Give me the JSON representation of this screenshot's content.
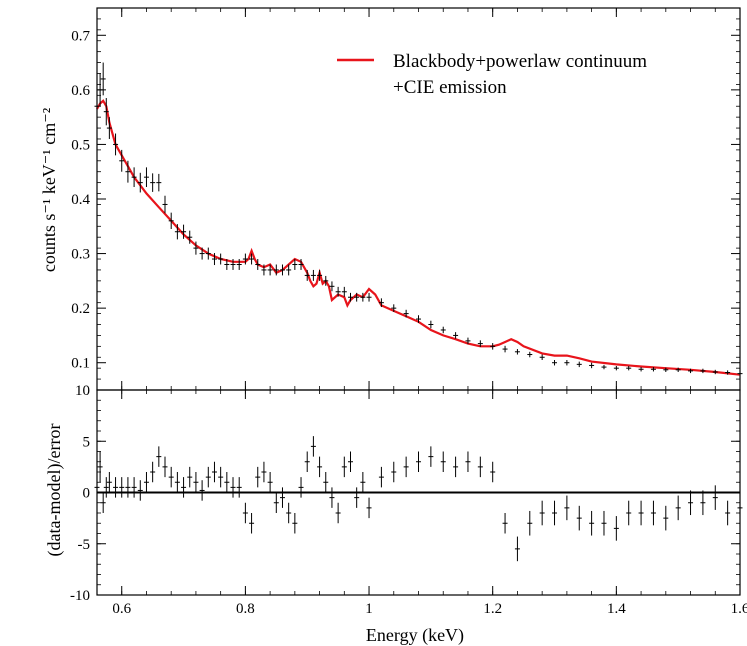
{
  "chart_data": [
    {
      "panel": "top",
      "type": "line",
      "xlabel": "",
      "ylabel": "counts s⁻¹ keV⁻¹ cm⁻²",
      "xlim": [
        0.56,
        1.6
      ],
      "ylim": [
        0.05,
        0.75
      ],
      "yticks": [
        0.1,
        0.2,
        0.3,
        0.4,
        0.5,
        0.6,
        0.7
      ],
      "xticks": [
        0.6,
        0.8,
        1,
        1.2,
        1.4,
        1.6
      ],
      "legend_position": "top-right",
      "series": [
        {
          "name": "Blackbody+powerlaw continuum +CIE emission",
          "legend_lines": [
            "Blackbody+powerlaw continuum",
            "+CIE emission"
          ],
          "color": "#e8141b",
          "kind": "line",
          "x": [
            0.56,
            0.565,
            0.57,
            0.575,
            0.58,
            0.59,
            0.6,
            0.62,
            0.64,
            0.66,
            0.68,
            0.7,
            0.72,
            0.74,
            0.76,
            0.78,
            0.8,
            0.805,
            0.81,
            0.815,
            0.82,
            0.83,
            0.84,
            0.85,
            0.86,
            0.87,
            0.88,
            0.89,
            0.9,
            0.905,
            0.91,
            0.915,
            0.92,
            0.925,
            0.93,
            0.935,
            0.94,
            0.95,
            0.96,
            0.965,
            0.97,
            0.98,
            0.99,
            1.0,
            1.01,
            1.02,
            1.04,
            1.06,
            1.08,
            1.1,
            1.12,
            1.14,
            1.16,
            1.18,
            1.2,
            1.21,
            1.22,
            1.23,
            1.24,
            1.25,
            1.28,
            1.3,
            1.32,
            1.34,
            1.36,
            1.4,
            1.44,
            1.48,
            1.52,
            1.56,
            1.6
          ],
          "y": [
            0.565,
            0.575,
            0.58,
            0.57,
            0.54,
            0.5,
            0.48,
            0.44,
            0.41,
            0.385,
            0.36,
            0.335,
            0.315,
            0.3,
            0.29,
            0.285,
            0.285,
            0.29,
            0.305,
            0.29,
            0.28,
            0.275,
            0.28,
            0.265,
            0.27,
            0.28,
            0.29,
            0.285,
            0.265,
            0.25,
            0.24,
            0.245,
            0.265,
            0.245,
            0.25,
            0.24,
            0.215,
            0.225,
            0.22,
            0.205,
            0.215,
            0.225,
            0.22,
            0.235,
            0.225,
            0.205,
            0.195,
            0.185,
            0.175,
            0.16,
            0.15,
            0.143,
            0.135,
            0.13,
            0.13,
            0.133,
            0.138,
            0.143,
            0.138,
            0.13,
            0.117,
            0.113,
            0.113,
            0.108,
            0.102,
            0.097,
            0.093,
            0.09,
            0.087,
            0.083,
            0.078
          ]
        },
        {
          "name": "data",
          "color": "#000000",
          "kind": "errorbar",
          "x": [
            0.56,
            0.565,
            0.57,
            0.575,
            0.58,
            0.59,
            0.6,
            0.61,
            0.62,
            0.63,
            0.64,
            0.65,
            0.66,
            0.67,
            0.68,
            0.69,
            0.7,
            0.71,
            0.72,
            0.73,
            0.74,
            0.75,
            0.76,
            0.77,
            0.78,
            0.79,
            0.8,
            0.81,
            0.82,
            0.83,
            0.84,
            0.85,
            0.86,
            0.87,
            0.88,
            0.89,
            0.9,
            0.91,
            0.92,
            0.93,
            0.94,
            0.95,
            0.96,
            0.97,
            0.98,
            0.99,
            1.0,
            1.02,
            1.04,
            1.06,
            1.08,
            1.1,
            1.12,
            1.14,
            1.16,
            1.18,
            1.2,
            1.22,
            1.24,
            1.26,
            1.28,
            1.3,
            1.32,
            1.34,
            1.36,
            1.38,
            1.4,
            1.42,
            1.44,
            1.46,
            1.48,
            1.5,
            1.52,
            1.54,
            1.56,
            1.58,
            1.6
          ],
          "y": [
            0.57,
            0.6,
            0.62,
            0.56,
            0.53,
            0.5,
            0.47,
            0.45,
            0.44,
            0.43,
            0.44,
            0.43,
            0.43,
            0.39,
            0.36,
            0.34,
            0.34,
            0.33,
            0.31,
            0.3,
            0.3,
            0.29,
            0.29,
            0.28,
            0.28,
            0.28,
            0.29,
            0.29,
            0.28,
            0.27,
            0.27,
            0.27,
            0.27,
            0.27,
            0.28,
            0.28,
            0.26,
            0.26,
            0.26,
            0.25,
            0.24,
            0.23,
            0.23,
            0.22,
            0.22,
            0.22,
            0.22,
            0.21,
            0.2,
            0.19,
            0.18,
            0.17,
            0.16,
            0.15,
            0.14,
            0.135,
            0.13,
            0.125,
            0.12,
            0.115,
            0.11,
            0.1,
            0.1,
            0.097,
            0.095,
            0.092,
            0.09,
            0.09,
            0.088,
            0.088,
            0.087,
            0.087,
            0.085,
            0.085,
            0.083,
            0.082,
            0.08
          ],
          "err": [
            0.03,
            0.03,
            0.03,
            0.025,
            0.02,
            0.02,
            0.02,
            0.02,
            0.018,
            0.018,
            0.018,
            0.017,
            0.016,
            0.016,
            0.015,
            0.014,
            0.013,
            0.012,
            0.012,
            0.011,
            0.011,
            0.011,
            0.01,
            0.01,
            0.01,
            0.01,
            0.01,
            0.01,
            0.01,
            0.01,
            0.01,
            0.01,
            0.01,
            0.01,
            0.01,
            0.01,
            0.01,
            0.01,
            0.01,
            0.009,
            0.009,
            0.009,
            0.009,
            0.008,
            0.008,
            0.008,
            0.008,
            0.008,
            0.007,
            0.007,
            0.007,
            0.007,
            0.006,
            0.006,
            0.006,
            0.006,
            0.006,
            0.006,
            0.005,
            0.005,
            0.005,
            0.005,
            0.005,
            0.005,
            0.005,
            0.004,
            0.004,
            0.004,
            0.004,
            0.004,
            0.004,
            0.004,
            0.004,
            0.004,
            0.004,
            0.004,
            0.004
          ]
        }
      ]
    },
    {
      "panel": "bottom",
      "type": "scatter",
      "xlabel": "Energy (keV)",
      "ylabel": "(data-model)/error",
      "xlim": [
        0.56,
        1.6
      ],
      "ylim": [
        -10,
        10
      ],
      "yticks": [
        -10,
        -5,
        0,
        5,
        10
      ],
      "xticks": [
        0.6,
        0.8,
        1,
        1.2,
        1.4,
        1.6
      ],
      "xticklabels": [
        "0.6",
        "0.8",
        "1",
        "1.2",
        "1.4",
        "1.6"
      ],
      "zero_line": 0,
      "series": [
        {
          "name": "residuals",
          "color": "#000000",
          "kind": "errorbar",
          "x": [
            0.56,
            0.565,
            0.57,
            0.575,
            0.58,
            0.59,
            0.6,
            0.61,
            0.62,
            0.63,
            0.64,
            0.65,
            0.66,
            0.67,
            0.68,
            0.69,
            0.7,
            0.71,
            0.72,
            0.73,
            0.74,
            0.75,
            0.76,
            0.77,
            0.78,
            0.79,
            0.8,
            0.81,
            0.82,
            0.83,
            0.84,
            0.85,
            0.86,
            0.87,
            0.88,
            0.89,
            0.9,
            0.91,
            0.92,
            0.93,
            0.94,
            0.95,
            0.96,
            0.97,
            0.98,
            0.99,
            1.0,
            1.02,
            1.04,
            1.06,
            1.08,
            1.1,
            1.12,
            1.14,
            1.16,
            1.18,
            1.2,
            1.22,
            1.24,
            1.26,
            1.28,
            1.3,
            1.32,
            1.34,
            1.36,
            1.38,
            1.4,
            1.42,
            1.44,
            1.46,
            1.48,
            1.5,
            1.52,
            1.54,
            1.56,
            1.58,
            1.6
          ],
          "y": [
            0.5,
            2.5,
            -1,
            0.5,
            1,
            0.5,
            0.5,
            0.5,
            0.5,
            0.2,
            1,
            2,
            3.5,
            2.5,
            1.5,
            1,
            0.5,
            1.5,
            1,
            0.2,
            1.5,
            2,
            1.5,
            1,
            0.5,
            0.5,
            -2,
            -3,
            1.5,
            2,
            1,
            -1,
            -0.5,
            -2,
            -3,
            0.5,
            3,
            4.5,
            2.5,
            1,
            -0.5,
            -2,
            2.5,
            3,
            -0.5,
            1,
            -1.5,
            1.5,
            2,
            2.5,
            3,
            3.5,
            3,
            2.5,
            3,
            2.5,
            2,
            -3,
            -5.5,
            -3,
            -2,
            -2,
            -1.5,
            -2.5,
            -3,
            -3,
            -3.5,
            -2,
            -2,
            -2,
            -2.5,
            -1.5,
            -1,
            -1,
            -0.5,
            -2,
            -1.5
          ],
          "err": [
            1,
            1.5,
            1,
            1,
            1,
            1,
            1,
            1,
            1,
            1,
            1,
            1,
            1,
            1,
            1,
            1,
            1,
            1,
            1,
            1,
            1,
            1,
            1,
            1,
            1,
            1,
            1,
            1,
            1,
            1,
            1,
            1,
            1,
            1,
            1,
            1,
            1,
            1,
            1,
            1,
            1,
            1,
            1,
            1,
            1,
            1,
            1,
            1,
            1,
            1,
            1,
            1,
            1,
            1,
            1,
            1,
            1,
            1,
            1.2,
            1.2,
            1.2,
            1.2,
            1.2,
            1.2,
            1.2,
            1.2,
            1.2,
            1.2,
            1.2,
            1.2,
            1.2,
            1.2,
            1.2,
            1.2,
            1.2,
            1.2,
            1.2
          ]
        }
      ]
    }
  ]
}
